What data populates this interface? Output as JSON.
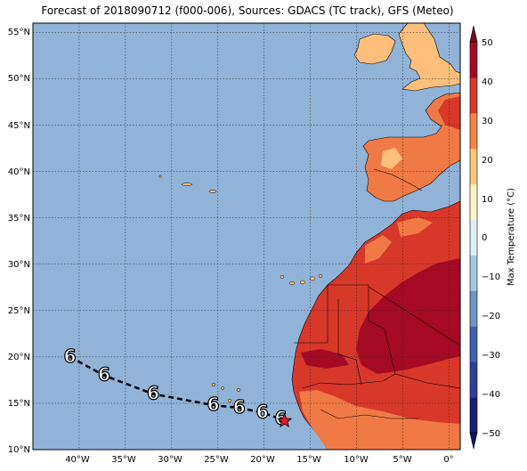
{
  "title": "Forecast of 2018090712 (f000-006), Sources: GDACS (TC track), GFS (Meteo)",
  "colorbar": {
    "label": "Max Temperature (°C)",
    "ticks": [
      "50",
      "40",
      "30",
      "20",
      "10",
      "0",
      "−10",
      "−20",
      "−30",
      "−40",
      "−50"
    ],
    "colors": [
      "#1b1f7a",
      "#2c3f9a",
      "#3f62b0",
      "#6f95c6",
      "#a6c8df",
      "#deeef4",
      "#fff4c9",
      "#fdc77e",
      "#f68446",
      "#d8382a",
      "#a50a24"
    ]
  },
  "axes": {
    "lat_labels": [
      "55°N",
      "50°N",
      "45°N",
      "40°N",
      "35°N",
      "30°N",
      "25°N",
      "20°N",
      "15°N",
      "10°N"
    ],
    "lon_labels": [
      "40°W",
      "35°W",
      "30°W",
      "25°W",
      "20°W",
      "15°W",
      "10°W",
      "5°W",
      "0°"
    ]
  },
  "colors": {
    "ocean": "#92b3d8",
    "hot": "#d8382a",
    "very_hot": "#a50a24",
    "warm": "#f07a45",
    "mild": "#fdbf7b",
    "track": "#000000",
    "storm_position": "#e31a1c"
  },
  "track_symbol": "6",
  "track_points": [
    {
      "lon": -41.0,
      "lat": 20.0
    },
    {
      "lon": -37.3,
      "lat": 18.0
    },
    {
      "lon": -32.0,
      "lat": 16.0
    },
    {
      "lon": -25.5,
      "lat": 14.8
    },
    {
      "lon": -22.7,
      "lat": 14.5
    },
    {
      "lon": -20.2,
      "lat": 14.0
    },
    {
      "lon": -18.2,
      "lat": 13.3
    }
  ],
  "current_position": {
    "lon": -17.8,
    "lat": 13.1
  }
}
